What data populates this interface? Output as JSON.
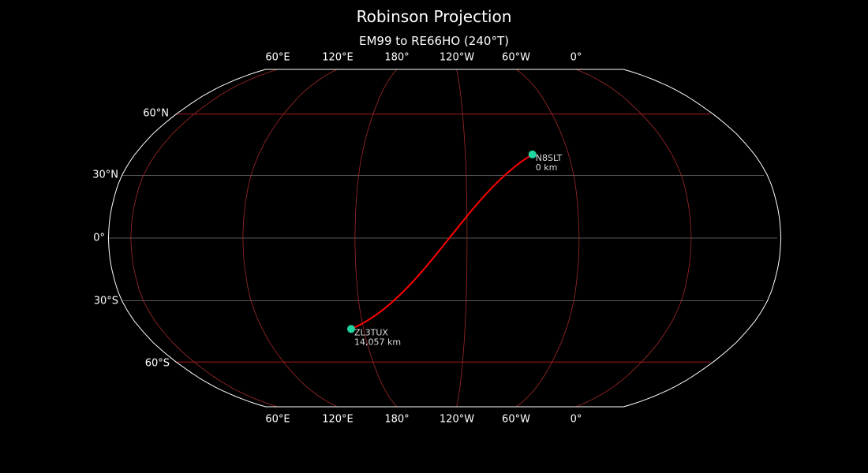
{
  "title": "Robinson Projection",
  "subtitle": "EM99 to RE66HO (240°T)",
  "chart_data": {
    "type": "map",
    "projection": "robinson",
    "central_longitude": -132,
    "background": "#000000",
    "coastline_color": "#888888",
    "path_color": "#ff0000",
    "marker_color": "#1fd6a0",
    "lon_labels": [
      "60°E",
      "120°E",
      "180°",
      "120°W",
      "60°W",
      "0°"
    ],
    "lat_labels": [
      "60°N",
      "30°N",
      "0°",
      "30°S",
      "60°S"
    ],
    "stations": [
      {
        "call": "N8SLT",
        "distance": "0 km",
        "lat": 40.0,
        "lon": -81.0
      },
      {
        "call": "ZL3TUX",
        "distance": "14,057 km",
        "lat": -43.5,
        "lon": 172.6
      }
    ]
  }
}
